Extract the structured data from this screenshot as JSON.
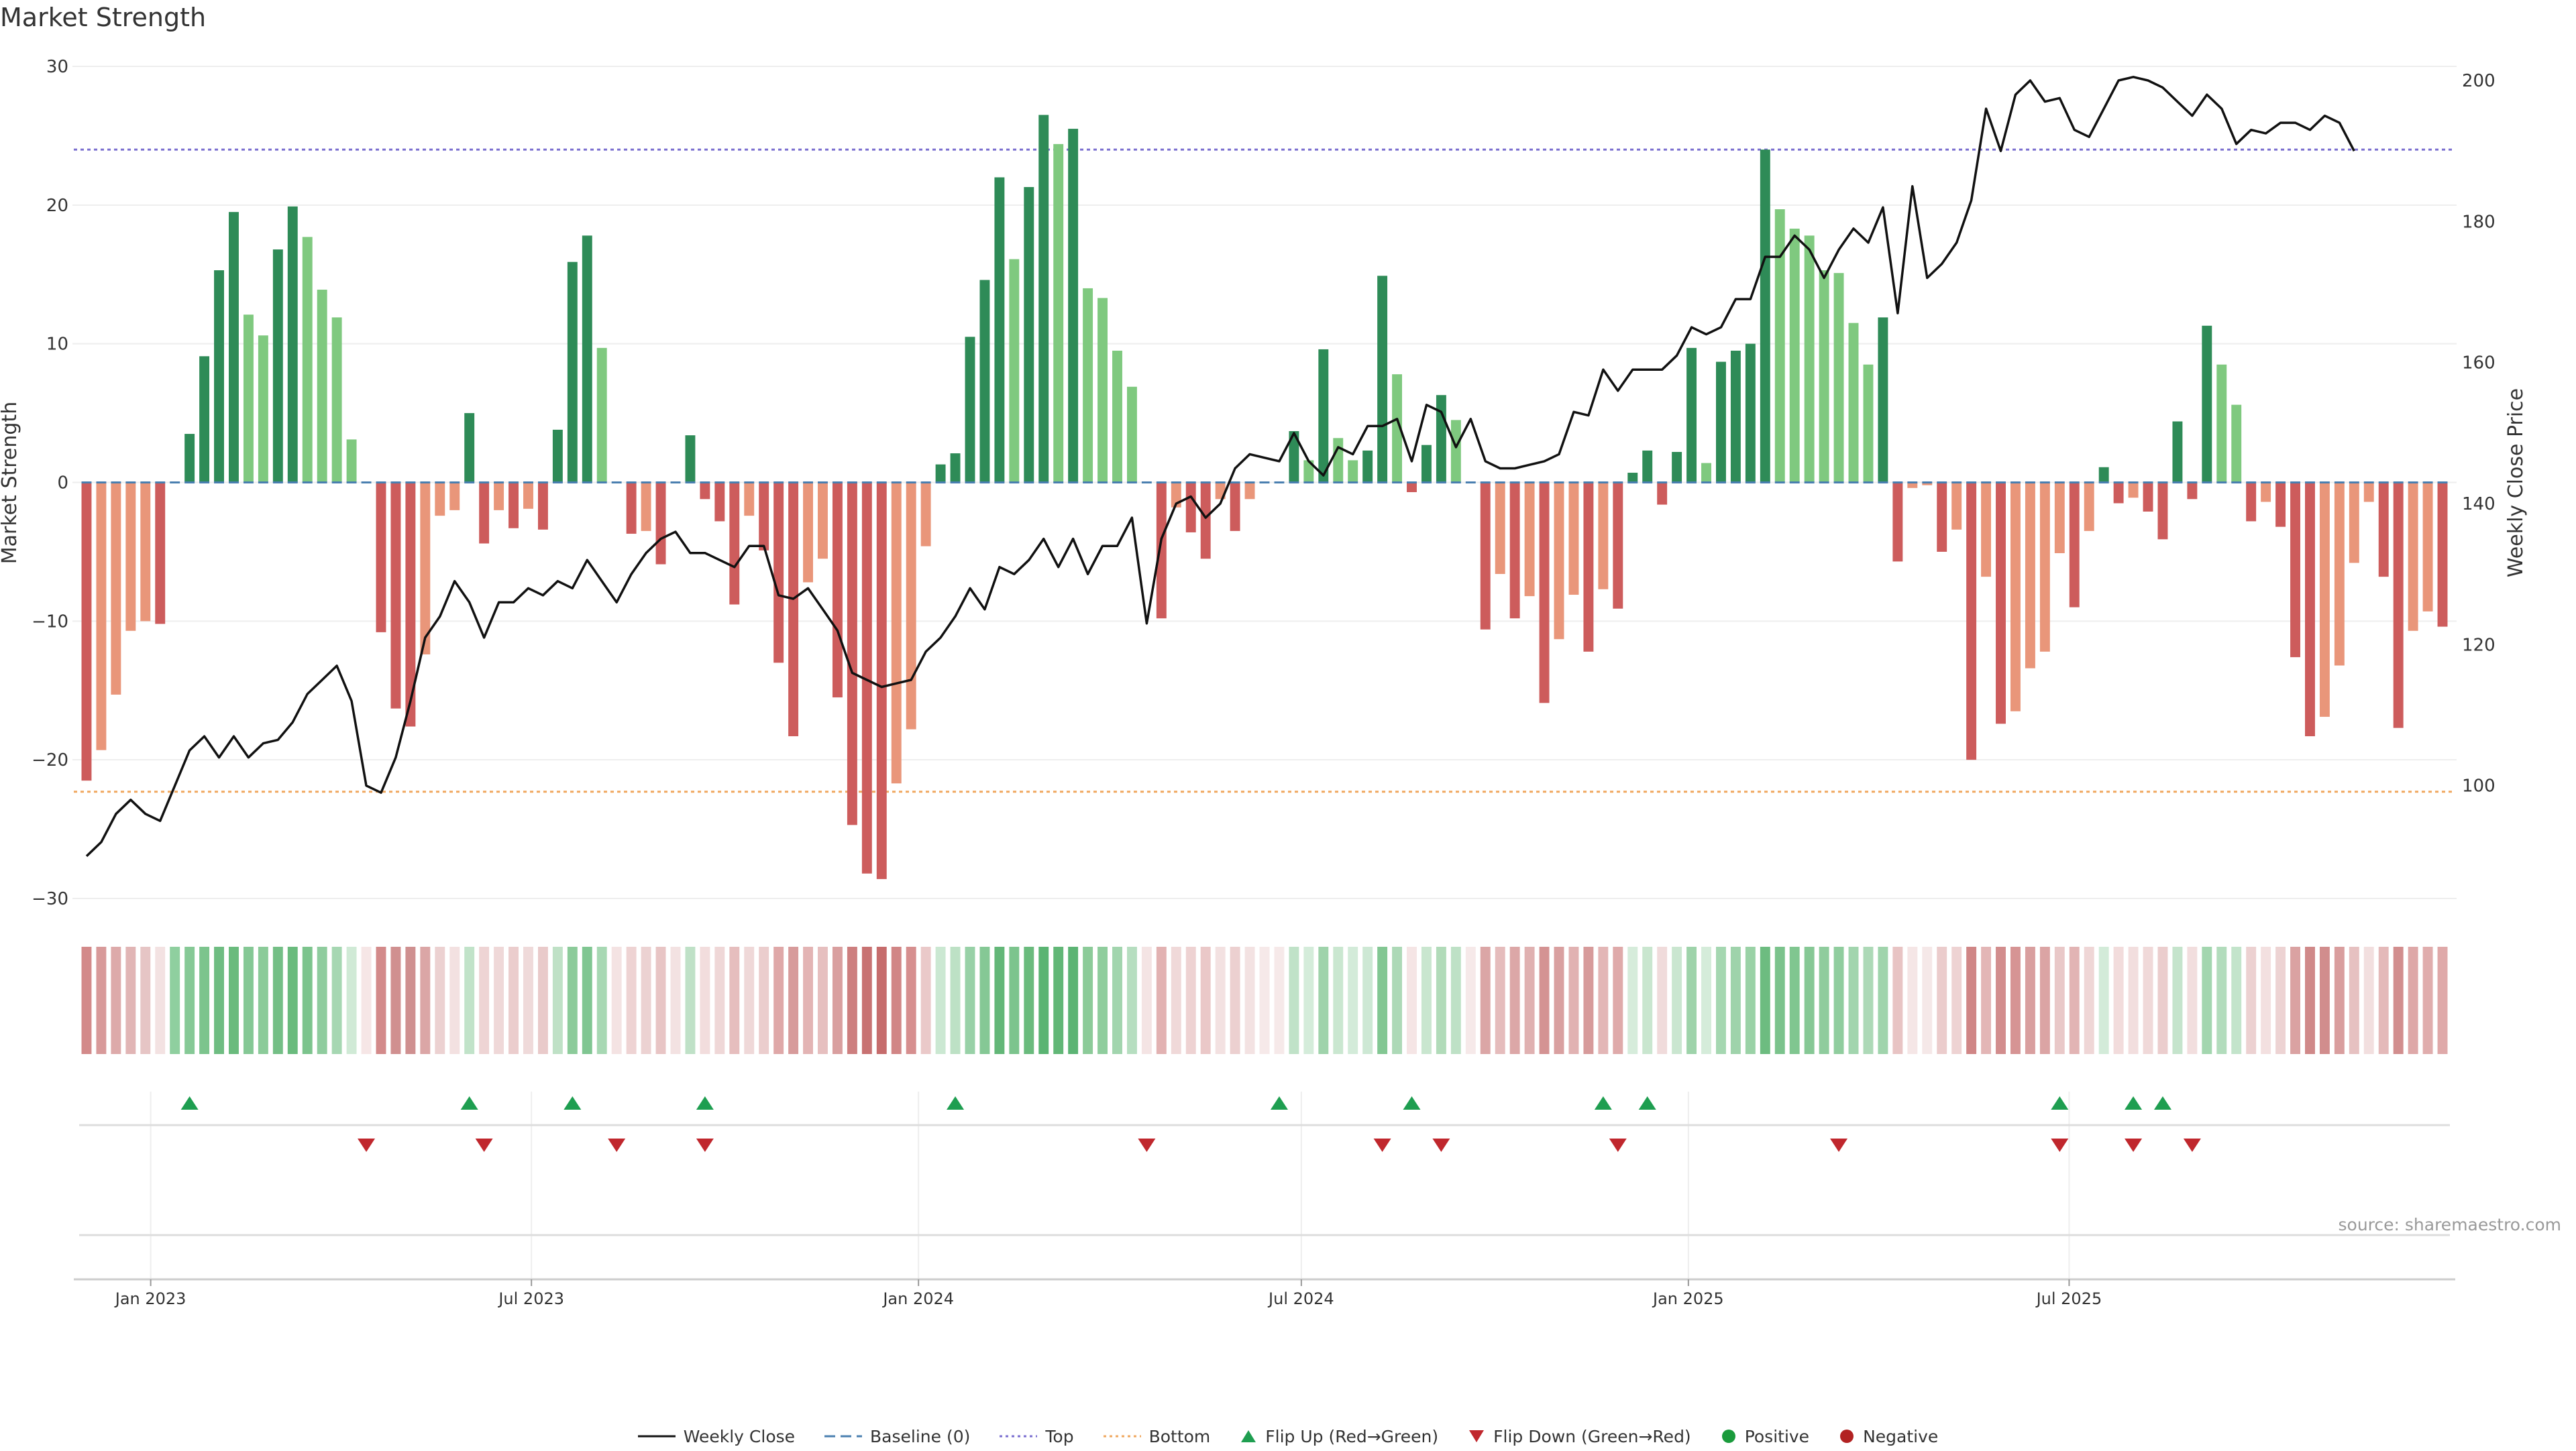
{
  "title": "Market Strength",
  "source": "source: sharemaestro.com",
  "colors": {
    "pos_dark": "#2e8b57",
    "pos_light": "#7fc97f",
    "neg_dark": "#cd5c5c",
    "neg_light": "#e9967a",
    "close": "#111111",
    "baseline": "#4a7fb0",
    "top": "#7b6fd0",
    "bottom": "#f0a860",
    "flip_up": "#1e9e50",
    "flip_down": "#c0272d",
    "positive": "#1a9b3c",
    "negative": "#b22222"
  },
  "chart_data": {
    "type": "bar+line",
    "title": "Market Strength",
    "ylabel_left": "Market Strength",
    "ylabel_right": "Weekly Close Price",
    "ylim_left": [
      -30,
      30
    ],
    "ylim_right": [
      84,
      202
    ],
    "yticks_left": [
      -30,
      -20,
      -10,
      0,
      10,
      20,
      30
    ],
    "yticks_right": [
      100,
      120,
      140,
      160,
      180,
      200
    ],
    "x_start": "2022-11-28",
    "x_step_days": 7,
    "x_ticks": [
      {
        "label": "Jan 2023",
        "date": "2023-01-01"
      },
      {
        "label": "Jul 2023",
        "date": "2023-07-01"
      },
      {
        "label": "Jan 2024",
        "date": "2024-01-01"
      },
      {
        "label": "Jul 2024",
        "date": "2024-07-01"
      },
      {
        "label": "Jan 2025",
        "date": "2025-01-01"
      },
      {
        "label": "Jul 2025",
        "date": "2025-07-01"
      }
    ],
    "top_line": 24,
    "bottom_line": -22.3,
    "baseline": 0,
    "strength": [
      -21.5,
      -19.3,
      -15.3,
      -10.7,
      -10,
      -10.2,
      0,
      3.5,
      9.1,
      15.3,
      19.5,
      12.1,
      10.6,
      16.8,
      19.9,
      17.7,
      13.9,
      11.9,
      3.1,
      0,
      -10.8,
      -16.3,
      -17.6,
      -12.4,
      -2.4,
      -2.0,
      5,
      -4.4,
      -2,
      -3.3,
      -1.9,
      -3.4,
      3.8,
      15.9,
      17.8,
      9.7,
      0,
      -3.7,
      -3.5,
      -5.9,
      0,
      3.4,
      -1.2,
      -2.8,
      -8.8,
      -2.4,
      -4.9,
      -13,
      -18.3,
      -7.2,
      -5.5,
      -15.5,
      -24.7,
      -28.2,
      -28.6,
      -21.7,
      -17.8,
      -4.6,
      1.3,
      2.1,
      10.5,
      14.6,
      22,
      16.1,
      21.3,
      26.5,
      24.4,
      25.5,
      14,
      13.3,
      9.5,
      6.9,
      0,
      -9.8,
      -1.8,
      -3.6,
      -5.5,
      -1.2,
      -3.5,
      -1.2,
      0,
      0,
      3.7,
      1.6,
      9.6,
      3.2,
      1.6,
      2.3,
      14.9,
      7.8,
      -0.7,
      2.7,
      6.3,
      4.5,
      0,
      -10.6,
      -6.6,
      -9.8,
      -8.2,
      -15.9,
      -11.3,
      -8.1,
      -12.2,
      -7.7,
      -9.1,
      0.7,
      2.3,
      -1.6,
      2.2,
      9.7,
      1.4,
      8.7,
      9.5,
      10,
      24,
      19.7,
      18.3,
      17.8,
      15.3,
      15.1,
      11.5,
      8.5,
      11.9,
      -5.7,
      -0.4,
      -0.2,
      -5,
      -3.4,
      -20,
      -6.8,
      -17.4,
      -16.5,
      -13.4,
      -12.2,
      -5.1,
      -9,
      -3.5,
      1.1,
      -1.5,
      -1.1,
      -2.1,
      -4.1,
      4.4,
      -1.2,
      11.3,
      8.5,
      5.6,
      -2.8,
      -1.4,
      -3.2,
      -12.6,
      -18.3,
      -16.9,
      -13.2,
      -5.8,
      -1.4,
      -6.8,
      -17.7,
      -10.7,
      -9.3,
      -10.4
    ],
    "close": [
      90,
      92,
      96,
      98,
      96,
      95,
      100,
      105,
      107,
      104,
      107,
      104,
      106,
      106.5,
      109,
      113,
      115,
      117,
      112,
      100,
      99,
      104,
      112,
      121,
      124,
      129,
      126,
      121,
      126,
      126,
      128,
      127,
      129,
      128,
      132,
      129,
      126,
      130,
      133,
      135,
      136,
      133,
      133,
      132,
      131,
      134,
      134,
      127,
      126.5,
      128,
      125,
      122,
      116,
      115,
      114,
      114.5,
      115,
      119,
      121,
      124,
      128,
      125,
      131,
      130,
      132,
      135,
      131,
      135,
      130,
      134,
      134,
      138,
      123,
      135,
      140,
      141,
      138,
      140,
      145,
      147,
      146.5,
      146,
      150,
      146,
      144,
      148,
      147,
      151,
      151,
      152,
      146,
      154,
      153,
      148,
      152,
      146,
      145,
      145,
      145.5,
      146,
      147,
      153,
      152.5,
      159,
      156,
      159,
      159,
      159,
      161,
      165,
      164,
      165,
      169,
      169,
      175,
      175,
      178,
      176,
      172,
      176,
      179,
      177,
      182,
      167,
      185,
      172,
      174,
      177,
      183,
      196,
      190,
      198,
      200,
      197,
      197.5,
      193,
      192,
      196,
      200,
      200.5,
      200,
      199,
      197,
      195,
      198,
      196,
      191,
      193,
      192.5,
      194,
      194,
      193,
      195,
      194,
      190
    ],
    "stripe_colors": [
      "#d38a8a",
      "#d89a9a",
      "#ddaaaa",
      "#e1b5b5",
      "#e6c5c5",
      "#f3e2e2",
      "#8fcf9f",
      "#86c996",
      "#7cc48d",
      "#6fbd82",
      "#6abb7d",
      "#85c895",
      "#8bcb99",
      "#74bf86",
      "#6abb7d",
      "#7cc48d",
      "#8fcc9e",
      "#a6d7b2",
      "#d0ead6",
      "#f6e6e6",
      "#d38a8a",
      "#d09090",
      "#cf9090",
      "#dba6a6",
      "#ecd1d1",
      "#f3e1e1",
      "#c1e3c9",
      "#eed4d4",
      "#efd8d8",
      "#ebcdcd",
      "#efdada",
      "#e9caca",
      "#bfe1c6",
      "#8ccb9a",
      "#80c692",
      "#a7d8b3",
      "#f4e3e3",
      "#eed3d3",
      "#ecd2d2",
      "#e8c5c5",
      "#f3e2e2",
      "#bfe1c7",
      "#f2dddd",
      "#efd7d7",
      "#e6bebe",
      "#efd8d8",
      "#ebcdcd",
      "#dfa8a8",
      "#d79b9b",
      "#e3b4b4",
      "#e6bfbf",
      "#d99f9f",
      "#cd7f7f",
      "#c87272",
      "#c66c6c",
      "#d18686",
      "#d68f8f",
      "#eac9c9",
      "#cbe8d2",
      "#bde1c5",
      "#98d1a7",
      "#85c895",
      "#63b778",
      "#7cc48d",
      "#6abb7d",
      "#5ab472",
      "#62b777",
      "#5cb474",
      "#8ccb99",
      "#8fcd9d",
      "#a2d5ae",
      "#b6dec0",
      "#f4e4e4",
      "#e2b2b2",
      "#f0d9d9",
      "#eed2d2",
      "#eac8c8",
      "#f3e1e1",
      "#ecd0d0",
      "#f3e2e2",
      "#f6e9e9",
      "#f6e9e9",
      "#c0e2c8",
      "#d4ecda",
      "#9fd3ab",
      "#cae7d0",
      "#d3ebd9",
      "#cde8d4",
      "#83c793",
      "#add9b7",
      "#f5e5e5",
      "#c9e6cf",
      "#b1dbb9",
      "#bee1c6",
      "#f6e9e9",
      "#dba6a6",
      "#e5bcbc",
      "#dca7a7",
      "#e0b1b1",
      "#d49393",
      "#d9a0a0",
      "#e1b2b2",
      "#d79b9b",
      "#e3b6b6",
      "#dfaaaa",
      "#d6ecdb",
      "#c9e6cf",
      "#f0dbdb",
      "#cae6d0",
      "#9ed3aa",
      "#d5ecda",
      "#a5d7b1",
      "#9fd3ab",
      "#9ad2a6",
      "#6dbc80",
      "#7bc38c",
      "#80c690",
      "#86c895",
      "#8fcc9d",
      "#90cd9e",
      "#a2d5ae",
      "#add9b7",
      "#a0d4ac",
      "#e8c4c4",
      "#f5e6e6",
      "#f5e8e8",
      "#ebcccc",
      "#eed3d3",
      "#d08686",
      "#e3b6b6",
      "#d28d8d",
      "#d69494",
      "#d99f9f",
      "#dba4a4",
      "#e9c8c8",
      "#e2b4b4",
      "#efd6d6",
      "#d3ebd9",
      "#f2dcdc",
      "#f2dede",
      "#f0d9d9",
      "#ebcdcd",
      "#c5e4cc",
      "#f2dede",
      "#a3d6af",
      "#b2dcbc",
      "#c3e4cb",
      "#ecd1d1",
      "#f3e0e0",
      "#edd3d3",
      "#daa2a2",
      "#d08989",
      "#d18d8d",
      "#d99e9e",
      "#e6c1c1",
      "#f2dfdf",
      "#e4b9b9",
      "#d28e8e",
      "#dea8a8",
      "#e0adad",
      "#dfa9a9"
    ],
    "flip_up_weeks": [
      7,
      26,
      33,
      42,
      59,
      81,
      90,
      103,
      106,
      134,
      139,
      141
    ],
    "flip_down_weeks": [
      19,
      27,
      36,
      42,
      72,
      88,
      92,
      104,
      119,
      134,
      139,
      143
    ],
    "legend": [
      "Weekly Close",
      "Baseline (0)",
      "Top",
      "Bottom",
      "Flip Up (Red→Green)",
      "Flip Down (Green→Red)",
      "Positive",
      "Negative"
    ]
  }
}
